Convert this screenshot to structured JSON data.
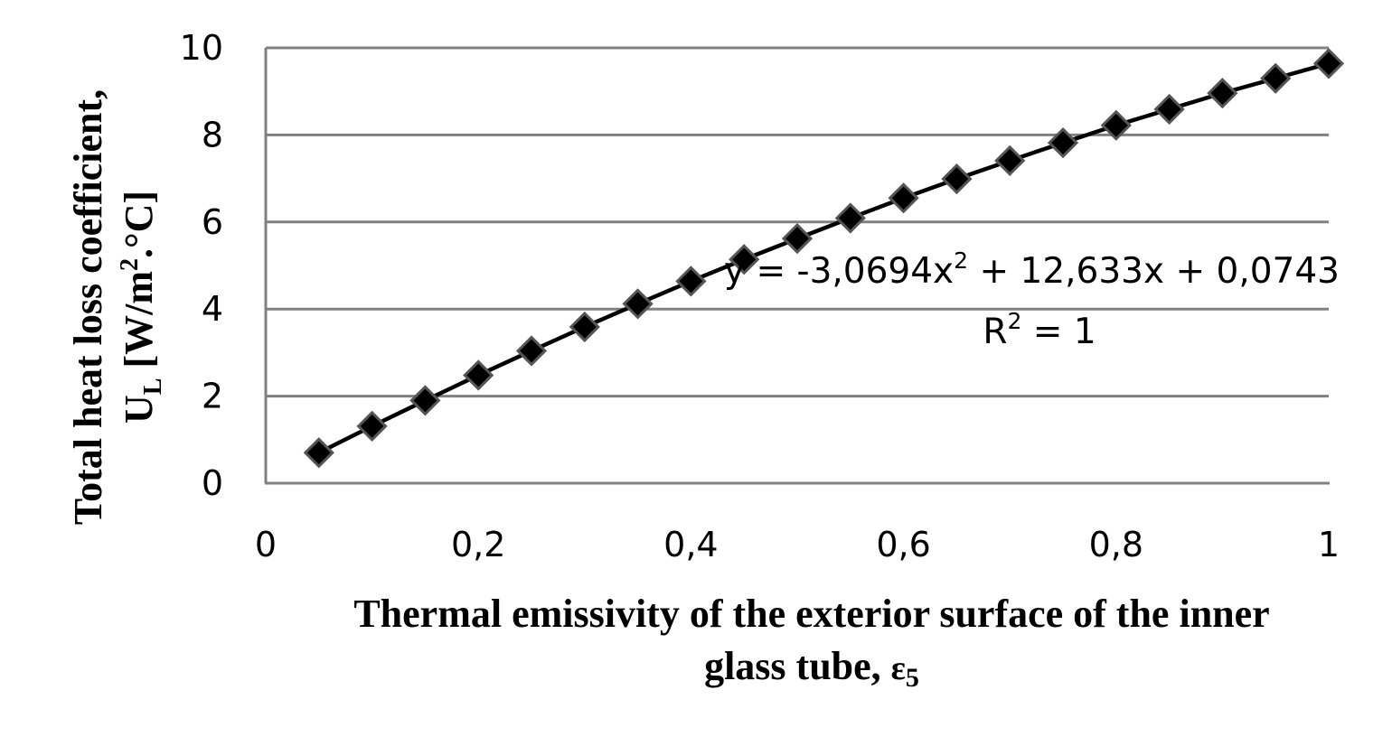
{
  "chart_data": {
    "type": "line",
    "title": "",
    "xlabel": "Thermal emissivity of the exterior surface of the inner glass tube, ε5",
    "ylabel": "Total heat loss coefficient, UL [W/m².°C]",
    "xlabel_lines": [
      "Thermal emissivity of the exterior surface of the inner",
      "glass tube, ",
      "ε",
      "5"
    ],
    "ylabel_lines": [
      "Total heat loss coefficient,",
      "U",
      "L",
      " [W/m",
      "2",
      ".°C]"
    ],
    "xlim": [
      0,
      1
    ],
    "ylim": [
      0,
      10
    ],
    "x_ticks": [
      "0",
      "0,2",
      "0,4",
      "0,6",
      "0,8",
      "1"
    ],
    "x_tick_values": [
      0,
      0.2,
      0.4,
      0.6,
      0.8,
      1.0
    ],
    "y_ticks": [
      "0",
      "2",
      "4",
      "6",
      "8",
      "10"
    ],
    "y_tick_values": [
      0,
      2,
      4,
      6,
      8,
      10
    ],
    "grid": {
      "horizontal": true,
      "vertical": false
    },
    "legend": null,
    "marker": "diamond",
    "series": [
      {
        "name": "UL",
        "color": "#000000",
        "x": [
          0.05,
          0.1,
          0.15,
          0.2,
          0.25,
          0.3,
          0.35,
          0.4,
          0.45,
          0.5,
          0.55,
          0.6,
          0.65,
          0.7,
          0.75,
          0.8,
          0.85,
          0.9,
          0.95,
          1.0
        ],
        "values": [
          0.7,
          1.31,
          1.9,
          2.48,
          3.04,
          3.59,
          4.12,
          4.64,
          5.14,
          5.62,
          6.09,
          6.55,
          6.99,
          7.41,
          7.82,
          8.22,
          8.59,
          8.96,
          9.3,
          9.64
        ]
      }
    ],
    "annotations": [
      {
        "text": "y = -3,0694x² + 12,633x + 0,0743",
        "type": "trendline-equation"
      },
      {
        "text": "R² = 1",
        "type": "r-squared"
      }
    ],
    "trendline": {
      "type": "polynomial",
      "order": 2,
      "a": -3.0694,
      "b": 12.633,
      "c": 0.0743,
      "r2": 1
    }
  },
  "equation": {
    "prefix": "y = -3,0694x",
    "sup": "2",
    "suffix": " + 12,633x + 0,0743",
    "r_prefix": "R",
    "r_sup": "2",
    "r_suffix": " = 1"
  },
  "colors": {
    "grid": "#808080",
    "axis": "#808080",
    "line": "#000000",
    "marker_fill": "#000000",
    "marker_stroke": "#555555"
  }
}
